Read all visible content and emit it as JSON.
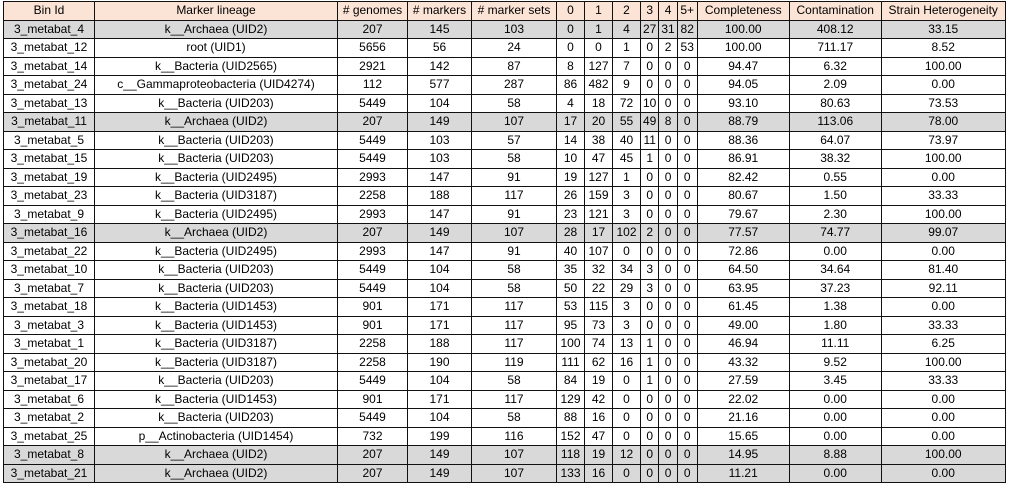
{
  "headers": [
    "Bin Id",
    "Marker lineage",
    "# genomes",
    "# markers",
    "# marker sets",
    "0",
    "1",
    "2",
    "3",
    "4",
    "5+",
    "Completeness",
    "Contamination",
    "Strain Heterogeneity"
  ],
  "rows": [
    {
      "shade": true,
      "cells": [
        "3_metabat_4",
        "k__Archaea (UID2)",
        "207",
        "145",
        "103",
        "0",
        "1",
        "4",
        "27",
        "31",
        "82",
        "100.00",
        "408.12",
        "33.15"
      ]
    },
    {
      "shade": false,
      "cells": [
        "3_metabat_12",
        "root (UID1)",
        "5656",
        "56",
        "24",
        "0",
        "0",
        "1",
        "0",
        "2",
        "53",
        "100.00",
        "711.17",
        "8.52"
      ]
    },
    {
      "shade": false,
      "cells": [
        "3_metabat_14",
        "k__Bacteria (UID2565)",
        "2921",
        "142",
        "87",
        "8",
        "127",
        "7",
        "0",
        "0",
        "0",
        "94.47",
        "6.32",
        "100.00"
      ]
    },
    {
      "shade": false,
      "cells": [
        "3_metabat_24",
        "c__Gammaproteobacteria (UID4274)",
        "112",
        "577",
        "287",
        "86",
        "482",
        "9",
        "0",
        "0",
        "0",
        "94.05",
        "2.09",
        "0.00"
      ]
    },
    {
      "shade": false,
      "cells": [
        "3_metabat_13",
        "k__Bacteria (UID203)",
        "5449",
        "104",
        "58",
        "4",
        "18",
        "72",
        "10",
        "0",
        "0",
        "93.10",
        "80.63",
        "73.53"
      ]
    },
    {
      "shade": true,
      "cells": [
        "3_metabat_11",
        "k__Archaea (UID2)",
        "207",
        "149",
        "107",
        "17",
        "20",
        "55",
        "49",
        "8",
        "0",
        "88.79",
        "113.06",
        "78.00"
      ]
    },
    {
      "shade": false,
      "cells": [
        "3_metabat_5",
        "k__Bacteria (UID203)",
        "5449",
        "103",
        "57",
        "14",
        "38",
        "40",
        "11",
        "0",
        "0",
        "88.36",
        "64.07",
        "73.97"
      ]
    },
    {
      "shade": false,
      "cells": [
        "3_metabat_15",
        "k__Bacteria (UID203)",
        "5449",
        "103",
        "58",
        "10",
        "47",
        "45",
        "1",
        "0",
        "0",
        "86.91",
        "38.32",
        "100.00"
      ]
    },
    {
      "shade": false,
      "cells": [
        "3_metabat_19",
        "k__Bacteria (UID2495)",
        "2993",
        "147",
        "91",
        "19",
        "127",
        "1",
        "0",
        "0",
        "0",
        "82.42",
        "0.55",
        "0.00"
      ]
    },
    {
      "shade": false,
      "cells": [
        "3_metabat_23",
        "k__Bacteria (UID3187)",
        "2258",
        "188",
        "117",
        "26",
        "159",
        "3",
        "0",
        "0",
        "0",
        "80.67",
        "1.50",
        "33.33"
      ]
    },
    {
      "shade": false,
      "cells": [
        "3_metabat_9",
        "k__Bacteria (UID2495)",
        "2993",
        "147",
        "91",
        "23",
        "121",
        "3",
        "0",
        "0",
        "0",
        "79.67",
        "2.30",
        "100.00"
      ]
    },
    {
      "shade": true,
      "cells": [
        "3_metabat_16",
        "k__Archaea (UID2)",
        "207",
        "149",
        "107",
        "28",
        "17",
        "102",
        "2",
        "0",
        "0",
        "77.57",
        "74.77",
        "99.07"
      ]
    },
    {
      "shade": false,
      "cells": [
        "3_metabat_22",
        "k__Bacteria (UID2495)",
        "2993",
        "147",
        "91",
        "40",
        "107",
        "0",
        "0",
        "0",
        "0",
        "72.86",
        "0.00",
        "0.00"
      ]
    },
    {
      "shade": false,
      "cells": [
        "3_metabat_10",
        "k__Bacteria (UID203)",
        "5449",
        "104",
        "58",
        "35",
        "32",
        "34",
        "3",
        "0",
        "0",
        "64.50",
        "34.64",
        "81.40"
      ]
    },
    {
      "shade": false,
      "cells": [
        "3_metabat_7",
        "k__Bacteria (UID203)",
        "5449",
        "104",
        "58",
        "50",
        "22",
        "29",
        "3",
        "0",
        "0",
        "63.95",
        "37.23",
        "92.11"
      ]
    },
    {
      "shade": false,
      "cells": [
        "3_metabat_18",
        "k__Bacteria (UID1453)",
        "901",
        "171",
        "117",
        "53",
        "115",
        "3",
        "0",
        "0",
        "0",
        "61.45",
        "1.38",
        "0.00"
      ]
    },
    {
      "shade": false,
      "cells": [
        "3_metabat_3",
        "k__Bacteria (UID1453)",
        "901",
        "171",
        "117",
        "95",
        "73",
        "3",
        "0",
        "0",
        "0",
        "49.00",
        "1.80",
        "33.33"
      ]
    },
    {
      "shade": false,
      "cells": [
        "3_metabat_1",
        "k__Bacteria (UID3187)",
        "2258",
        "188",
        "117",
        "100",
        "74",
        "13",
        "1",
        "0",
        "0",
        "46.94",
        "11.11",
        "6.25"
      ]
    },
    {
      "shade": false,
      "cells": [
        "3_metabat_20",
        "k__Bacteria (UID3187)",
        "2258",
        "190",
        "119",
        "111",
        "62",
        "16",
        "1",
        "0",
        "0",
        "43.32",
        "9.52",
        "100.00"
      ]
    },
    {
      "shade": false,
      "cells": [
        "3_metabat_17",
        "k__Bacteria (UID203)",
        "5449",
        "104",
        "58",
        "84",
        "19",
        "0",
        "1",
        "0",
        "0",
        "27.59",
        "3.45",
        "33.33"
      ]
    },
    {
      "shade": false,
      "cells": [
        "3_metabat_6",
        "k__Bacteria (UID1453)",
        "901",
        "171",
        "117",
        "129",
        "42",
        "0",
        "0",
        "0",
        "0",
        "22.02",
        "0.00",
        "0.00"
      ]
    },
    {
      "shade": false,
      "cells": [
        "3_metabat_2",
        "k__Bacteria (UID203)",
        "5449",
        "104",
        "58",
        "88",
        "16",
        "0",
        "0",
        "0",
        "0",
        "21.16",
        "0.00",
        "0.00"
      ]
    },
    {
      "shade": false,
      "cells": [
        "3_metabat_25",
        "p__Actinobacteria (UID1454)",
        "732",
        "199",
        "116",
        "152",
        "47",
        "0",
        "0",
        "0",
        "0",
        "15.65",
        "0.00",
        "0.00"
      ]
    },
    {
      "shade": true,
      "cells": [
        "3_metabat_8",
        "k__Archaea (UID2)",
        "207",
        "149",
        "107",
        "118",
        "19",
        "12",
        "0",
        "0",
        "0",
        "14.95",
        "8.88",
        "100.00"
      ]
    },
    {
      "shade": true,
      "cells": [
        "3_metabat_21",
        "k__Archaea (UID2)",
        "207",
        "149",
        "107",
        "133",
        "16",
        "0",
        "0",
        "0",
        "0",
        "11.21",
        "0.00",
        "0.00"
      ]
    }
  ],
  "colors": {
    "header_background": "#fbe3d6",
    "shaded_row_background": "#d9d9d9",
    "grid_line": "#111111"
  }
}
